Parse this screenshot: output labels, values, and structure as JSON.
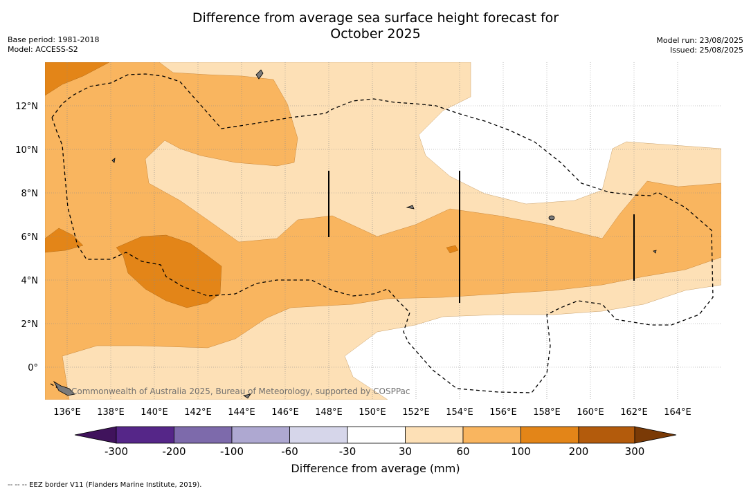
{
  "header": {
    "title_line1": "Difference from average sea surface height forecast for",
    "title_line2": "October 2025",
    "base_period": "Base period: 1981-2018",
    "model": "Model: ACCESS-S2",
    "model_run": "Model run: 23/08/2025",
    "issued": "Issued: 25/08/2025"
  },
  "map": {
    "x_ticks": [
      "136°E",
      "138°E",
      "140°E",
      "142°E",
      "144°E",
      "146°E",
      "148°E",
      "150°E",
      "152°E",
      "154°E",
      "156°E",
      "158°E",
      "160°E",
      "162°E",
      "164°E"
    ],
    "y_ticks": [
      "12°N",
      "10°N",
      "8°N",
      "6°N",
      "4°N",
      "2°N",
      "0°"
    ],
    "copyright": "Commonwealth of Australia 2025, Bureau of Meteorology, supported by COSPPac",
    "colors": {
      "c30_60": "#fde0b6",
      "c60_100": "#f9b55f",
      "c100_200": "#e38518",
      "coast": "#000000",
      "eez": "#000000"
    }
  },
  "colorbar": {
    "title": "Difference from average (mm)",
    "labels": [
      "-300",
      "-200",
      "-100",
      "-60",
      "-30",
      "30",
      "60",
      "100",
      "200",
      "300"
    ],
    "colors": [
      "#40135c",
      "#552688",
      "#7d6aab",
      "#aea8d1",
      "#d6d6ea",
      "#ffffff",
      "#fde0b6",
      "#f9b55f",
      "#e38518",
      "#b35b0c",
      "#7a3a06"
    ]
  },
  "footnote": "--  --  -- EEZ border V11 (Flanders Marine Institute, 2019)."
}
